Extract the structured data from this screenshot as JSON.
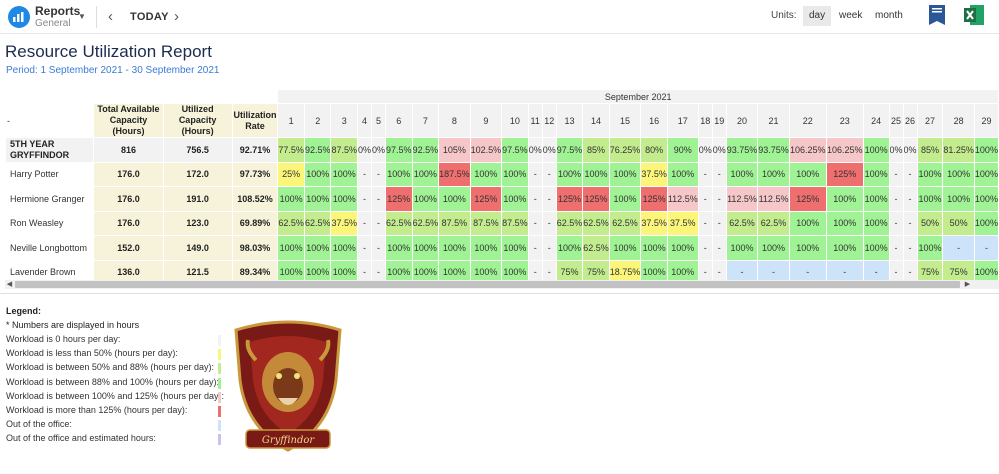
{
  "header": {
    "app_name": "Reports",
    "app_subtitle": "General",
    "today_label": "TODAY",
    "units_label": "Units:",
    "units": [
      "day",
      "week",
      "month"
    ],
    "selected_unit": "day"
  },
  "report": {
    "title": "Resource Utilization Report",
    "period": "Period: 1 September 2021 - 30 September 2021"
  },
  "table": {
    "month_label": "September 2021",
    "first_col_header": "-",
    "col_headers": [
      "Total Available Capacity (Hours)",
      "Utilized Capacity (Hours)",
      "Utilization Rate"
    ],
    "days": [
      "1",
      "2",
      "3",
      "4",
      "5",
      "6",
      "7",
      "8",
      "9",
      "10",
      "11",
      "12",
      "13",
      "14",
      "15",
      "16",
      "17",
      "18",
      "19",
      "20",
      "21",
      "22",
      "23",
      "24",
      "25",
      "26",
      "27",
      "28",
      "29"
    ],
    "rows": [
      {
        "name": "5TH YEAR GRYFFINDOR",
        "team": true,
        "available": "816",
        "utilized": "756.5",
        "rate": "92.71%",
        "cells": [
          "77.5%",
          "92.5%",
          "87.5%",
          "0%",
          "0%",
          "97.5%",
          "92.5%",
          "105%",
          "102.5%",
          "97.5%",
          "0%",
          "0%",
          "97.5%",
          "85%",
          "76.25%",
          "80%",
          "90%",
          "0%",
          "0%",
          "93.75%",
          "93.75%",
          "106.25%",
          "106.25%",
          "100%",
          "0%",
          "0%",
          "85%",
          "81.25%",
          "100%"
        ],
        "cell_levels": [
          "mid",
          "full",
          "mid",
          "zero",
          "zero",
          "full",
          "full",
          "over",
          "over",
          "full",
          "zero",
          "zero",
          "full",
          "mid",
          "mid",
          "mid",
          "full",
          "zero",
          "zero",
          "full",
          "full",
          "over",
          "over",
          "full",
          "zero",
          "zero",
          "mid",
          "mid",
          "full"
        ]
      },
      {
        "name": "Harry Potter",
        "team": false,
        "available": "176.0",
        "utilized": "172.0",
        "rate": "97.73%",
        "cells": [
          "25%",
          "100%",
          "100%",
          "-",
          "-",
          "100%",
          "100%",
          "187.5%",
          "100%",
          "100%",
          "-",
          "-",
          "100%",
          "100%",
          "100%",
          "37.5%",
          "100%",
          "-",
          "-",
          "100%",
          "100%",
          "100%",
          "125%",
          "100%",
          "-",
          "-",
          "100%",
          "100%",
          "100%"
        ],
        "cell_levels": [
          "low",
          "full",
          "full",
          "dash",
          "dash",
          "full",
          "full",
          "high",
          "full",
          "full",
          "dash",
          "dash",
          "full",
          "full",
          "full",
          "low",
          "full",
          "dash",
          "dash",
          "full",
          "full",
          "full",
          "high",
          "full",
          "dash",
          "dash",
          "full",
          "full",
          "full"
        ]
      },
      {
        "name": "Hermione Granger",
        "team": false,
        "available": "176.0",
        "utilized": "191.0",
        "rate": "108.52%",
        "cells": [
          "100%",
          "100%",
          "100%",
          "-",
          "-",
          "125%",
          "100%",
          "100%",
          "125%",
          "100%",
          "-",
          "-",
          "125%",
          "125%",
          "100%",
          "125%",
          "112.5%",
          "-",
          "-",
          "112.5%",
          "112.5%",
          "125%",
          "100%",
          "100%",
          "-",
          "-",
          "100%",
          "100%",
          "100%"
        ],
        "cell_levels": [
          "full",
          "full",
          "full",
          "dash",
          "dash",
          "high",
          "full",
          "full",
          "high",
          "full",
          "dash",
          "dash",
          "high",
          "high",
          "full",
          "high",
          "over",
          "dash",
          "dash",
          "over",
          "over",
          "high",
          "full",
          "full",
          "dash",
          "dash",
          "full",
          "full",
          "full"
        ]
      },
      {
        "name": "Ron Weasley",
        "team": false,
        "available": "176.0",
        "utilized": "123.0",
        "rate": "69.89%",
        "cells": [
          "62.5%",
          "62.5%",
          "37.5%",
          "-",
          "-",
          "62.5%",
          "62.5%",
          "87.5%",
          "87.5%",
          "87.5%",
          "-",
          "-",
          "62.5%",
          "62.5%",
          "62.5%",
          "37.5%",
          "37.5%",
          "-",
          "-",
          "62.5%",
          "62.5%",
          "100%",
          "100%",
          "100%",
          "-",
          "-",
          "50%",
          "50%",
          "100%"
        ],
        "cell_levels": [
          "mid",
          "mid",
          "low",
          "dash",
          "dash",
          "mid",
          "mid",
          "mid",
          "mid",
          "mid",
          "dash",
          "dash",
          "mid",
          "mid",
          "mid",
          "low",
          "low",
          "dash",
          "dash",
          "mid",
          "mid",
          "full",
          "full",
          "full",
          "dash",
          "dash",
          "mid",
          "mid",
          "full"
        ]
      },
      {
        "name": "Neville Longbottom",
        "team": false,
        "available": "152.0",
        "utilized": "149.0",
        "rate": "98.03%",
        "cells": [
          "100%",
          "100%",
          "100%",
          "-",
          "-",
          "100%",
          "100%",
          "100%",
          "100%",
          "100%",
          "-",
          "-",
          "100%",
          "62.5%",
          "100%",
          "100%",
          "100%",
          "-",
          "-",
          "100%",
          "100%",
          "100%",
          "100%",
          "100%",
          "-",
          "-",
          "100%",
          "-",
          "-"
        ],
        "cell_levels": [
          "full",
          "full",
          "full",
          "dash",
          "dash",
          "full",
          "full",
          "full",
          "full",
          "full",
          "dash",
          "dash",
          "full",
          "mid",
          "full",
          "full",
          "full",
          "dash",
          "dash",
          "full",
          "full",
          "full",
          "full",
          "full",
          "dash",
          "dash",
          "full",
          "out",
          "out"
        ]
      },
      {
        "name": "Lavender Brown",
        "team": false,
        "available": "136.0",
        "utilized": "121.5",
        "rate": "89.34%",
        "cells": [
          "100%",
          "100%",
          "100%",
          "-",
          "-",
          "100%",
          "100%",
          "100%",
          "100%",
          "100%",
          "-",
          "-",
          "75%",
          "75%",
          "18.75%",
          "100%",
          "100%",
          "-",
          "-",
          "-",
          "-",
          "-",
          "-",
          "-",
          "-",
          "-",
          "75%",
          "75%",
          "100%"
        ],
        "cell_levels": [
          "full",
          "full",
          "full",
          "dash",
          "dash",
          "full",
          "full",
          "full",
          "full",
          "full",
          "dash",
          "dash",
          "mid",
          "mid",
          "low",
          "full",
          "full",
          "dash",
          "dash",
          "out",
          "out",
          "out",
          "out",
          "out",
          "dash",
          "dash",
          "mid",
          "mid",
          "full"
        ]
      }
    ]
  },
  "legend": {
    "title": "Legend:",
    "note": "* Numbers are displayed in hours",
    "items": [
      {
        "label": "Workload is 0 hours per day:",
        "color": "#f2f2f2"
      },
      {
        "label": "Workload is less than 50% (hours per day):",
        "color": "#fbf57a"
      },
      {
        "label": "Workload is between 50% and 88% (hours per day):",
        "color": "#c3ec8f"
      },
      {
        "label": "Workload is between 88% and 100% (hours per day):",
        "color": "#9ff394"
      },
      {
        "label": "Workload is between 100% and 125% (hours per day):",
        "color": "#f6c7c9"
      },
      {
        "label": "Workload is more than 125% (hours per day):",
        "color": "#ef6e6e"
      },
      {
        "label": "Out of the office:",
        "color": "#cde3f9"
      },
      {
        "label": "Out of the office and estimated hours:",
        "color": "#c8c3ee"
      }
    ]
  },
  "crest": {
    "label": "Gryffindor"
  },
  "colors": {
    "accent": "#1e88e5",
    "title": "#1d2b4e",
    "period": "#3a7bd5",
    "word": "#2b5797",
    "excel": "#1d7044"
  }
}
